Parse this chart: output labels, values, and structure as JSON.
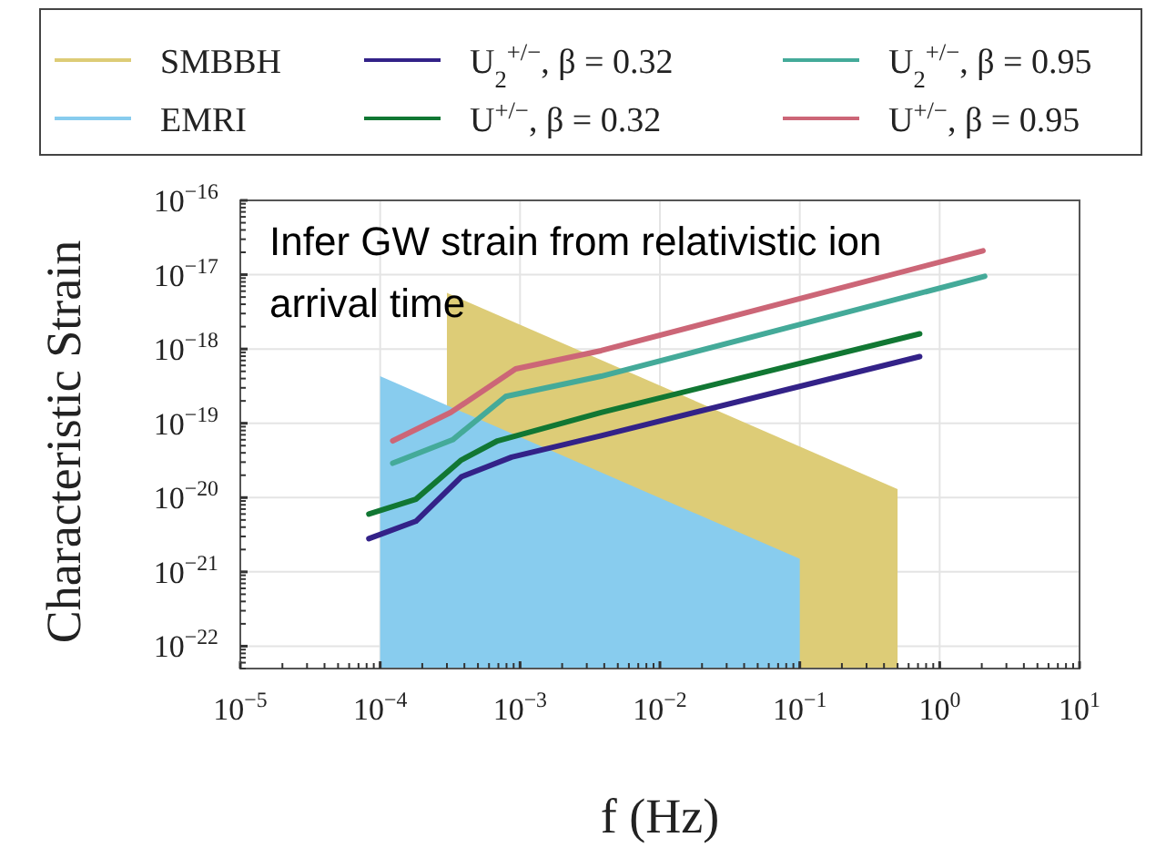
{
  "chart_data": {
    "type": "line",
    "xlabel": "f (Hz)",
    "ylabel": "Characteristic Strain",
    "annotations": [
      "Infer GW strain from relativistic ion arrival time"
    ],
    "log": "xy",
    "grid": true,
    "legend": "top",
    "xlim": [
      1e-05,
      10
    ],
    "ylim": [
      5e-23,
      1e-16
    ],
    "xticks": [
      {
        "value": 1e-05,
        "label": "10$^{−5}$"
      },
      {
        "value": 0.0001,
        "label": "10$^{−4}$"
      },
      {
        "value": 0.001,
        "label": "10$^{−3}$"
      },
      {
        "value": 0.01,
        "label": "10$^{−2}$"
      },
      {
        "value": 0.1,
        "label": "10$^{−1}$"
      },
      {
        "value": 1,
        "label": "10$^{0}$"
      },
      {
        "value": 10,
        "label": "10$^{1}$"
      }
    ],
    "yticks": [
      {
        "value": 1e-22,
        "label": "10$^{−22}$"
      },
      {
        "value": 1e-21,
        "label": "10$^{−21}$"
      },
      {
        "value": 1e-20,
        "label": "10$^{−20}$"
      },
      {
        "value": 1e-19,
        "label": "10$^{−19}$"
      },
      {
        "value": 1e-18,
        "label": "10$^{−18}$"
      },
      {
        "value": 1e-17,
        "label": "10$^{−17}$"
      },
      {
        "value": 1e-16,
        "label": "10$^{−16}$"
      }
    ],
    "series": [
      {
        "name": "SMBBH",
        "type": "area",
        "color": "#ddcc77",
        "x": [
          0.0003,
          0.5
        ],
        "values": [
          5.7e-18,
          1.3e-20
        ]
      },
      {
        "name": "EMRI",
        "type": "area",
        "color": "#88ccee",
        "x": [
          0.0001,
          0.1
        ],
        "values": [
          4.3e-19,
          1.5e-21
        ]
      },
      {
        "name": "U$_{2}$$^{+/−}$, β = 0.32",
        "color": "#332288",
        "x": [
          8.3e-05,
          0.00018,
          0.00038,
          0.00087,
          0.0038,
          0.72
        ],
        "values": [
          2.8e-21,
          4.8e-21,
          1.9e-20,
          3.5e-20,
          6.8e-20,
          7.9e-19
        ]
      },
      {
        "name": "U$^{+/−}$, β = 0.32",
        "color": "#117733",
        "x": [
          8.3e-05,
          0.00018,
          0.00038,
          0.00069,
          0.0038,
          0.72
        ],
        "values": [
          6e-21,
          9.5e-21,
          3.2e-20,
          5.8e-20,
          1.4e-19,
          1.6e-18
        ]
      },
      {
        "name": "U$_{2}$$^{+/−}$, β = 0.95",
        "color": "#44aa99",
        "x": [
          0.000123,
          0.00033,
          0.00079,
          0.0038,
          2.1
        ],
        "values": [
          2.9e-20,
          6e-20,
          2.3e-19,
          4.3e-19,
          9.5e-18
        ]
      },
      {
        "name": "U$^{+/−}$, β = 0.95",
        "color": "#cc6677",
        "x": [
          0.000123,
          0.00032,
          0.00093,
          0.0038,
          2.04
        ],
        "values": [
          5.8e-20,
          1.4e-19,
          5.4e-19,
          9.5e-19,
          2.1e-17
        ]
      }
    ]
  }
}
